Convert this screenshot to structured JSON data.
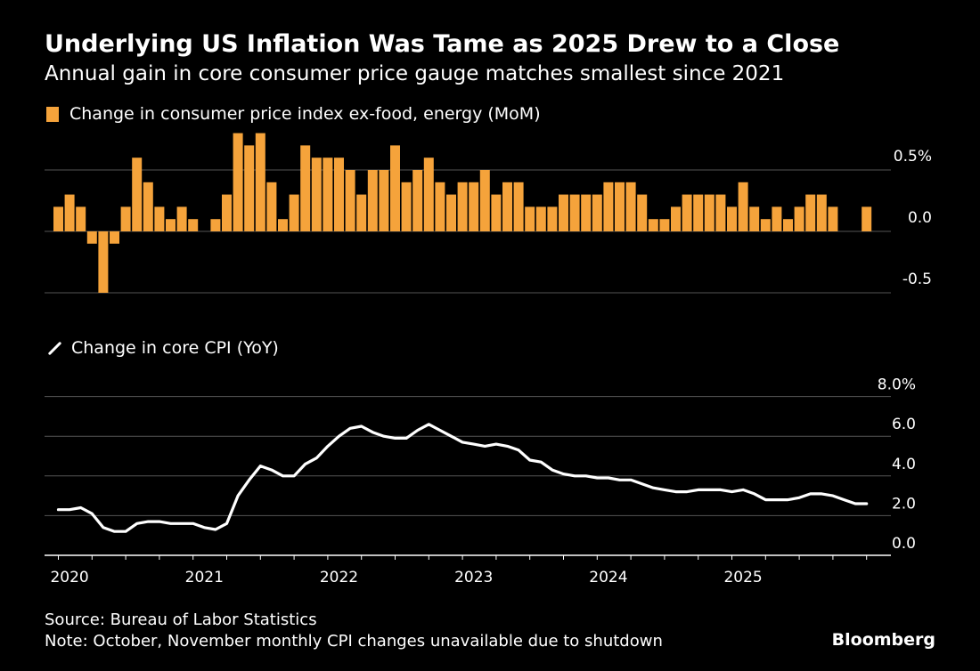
{
  "header": {
    "title": "Underlying US Inflation Was Tame as 2025 Drew to a Close",
    "subtitle": "Annual gain in core consumer price gauge matches smallest since 2021"
  },
  "footer": {
    "source": "Source: Bureau of Labor Statistics",
    "note": "Note: October, November monthly CPI changes unavailable due to shutdown",
    "brand": "Bloomberg"
  },
  "colors": {
    "bar": "#f5a33b",
    "line": "#ffffff",
    "grid": "#555555",
    "background": "#000000"
  },
  "chart_data": [
    {
      "type": "bar",
      "legend": "Change in consumer price index ex-food, energy (MoM)",
      "ylim": [
        -0.5,
        0.8
      ],
      "yticks": [
        0.5,
        0.0,
        -0.5
      ],
      "ytick_labels": [
        "0.5%",
        "0.0",
        "-0.5"
      ],
      "start": "2019-12",
      "values": [
        0.2,
        0.3,
        0.2,
        -0.1,
        -0.5,
        -0.1,
        0.2,
        0.6,
        0.4,
        0.2,
        0.1,
        0.2,
        0.1,
        0.0,
        0.1,
        0.3,
        0.8,
        0.7,
        0.8,
        0.4,
        0.1,
        0.3,
        0.7,
        0.6,
        0.6,
        0.6,
        0.5,
        0.3,
        0.5,
        0.5,
        0.7,
        0.4,
        0.5,
        0.6,
        0.4,
        0.3,
        0.4,
        0.4,
        0.5,
        0.3,
        0.4,
        0.4,
        0.2,
        0.2,
        0.2,
        0.3,
        0.3,
        0.3,
        0.3,
        0.4,
        0.4,
        0.4,
        0.3,
        0.1,
        0.1,
        0.2,
        0.3,
        0.3,
        0.3,
        0.3,
        0.2,
        0.4,
        0.2,
        0.1,
        0.2,
        0.1,
        0.2,
        0.3,
        0.3,
        0.2,
        null,
        null,
        0.2
      ]
    },
    {
      "type": "line",
      "legend": "Change in core CPI (YoY)",
      "ylim": [
        0,
        8
      ],
      "yticks": [
        8,
        6,
        4,
        2,
        0
      ],
      "ytick_labels": [
        "8.0%",
        "6.0",
        "4.0",
        "2.0",
        "0.0"
      ],
      "x_labels": [
        "2020",
        "2021",
        "2022",
        "2023",
        "2024",
        "2025"
      ],
      "start": "2019-12",
      "values": [
        2.3,
        2.3,
        2.4,
        2.1,
        1.4,
        1.2,
        1.2,
        1.6,
        1.7,
        1.7,
        1.6,
        1.6,
        1.6,
        1.4,
        1.3,
        1.6,
        3.0,
        3.8,
        4.5,
        4.3,
        4.0,
        4.0,
        4.6,
        4.9,
        5.5,
        6.0,
        6.4,
        6.5,
        6.2,
        6.0,
        5.9,
        5.9,
        6.3,
        6.6,
        6.3,
        6.0,
        5.7,
        5.6,
        5.5,
        5.6,
        5.5,
        5.3,
        4.8,
        4.7,
        4.3,
        4.1,
        4.0,
        4.0,
        3.9,
        3.9,
        3.8,
        3.8,
        3.6,
        3.4,
        3.3,
        3.2,
        3.2,
        3.3,
        3.3,
        3.3,
        3.2,
        3.3,
        3.1,
        2.8,
        2.8,
        2.8,
        2.9,
        3.1,
        3.1,
        3.0,
        2.8,
        2.6,
        2.6
      ]
    }
  ]
}
